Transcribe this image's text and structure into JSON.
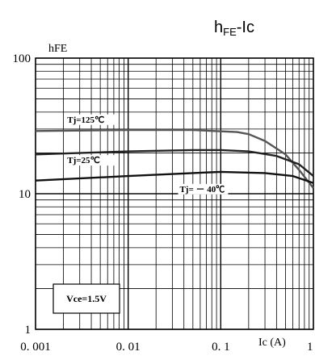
{
  "chart_data": {
    "type": "line",
    "title_main": "h",
    "title_sub": "FE",
    "title_tail": "-Ic",
    "ylabel": "hFE",
    "xlabel": "Ic (A)",
    "x_scale": "log",
    "y_scale": "log",
    "xlim": [
      0.001,
      1
    ],
    "ylim": [
      1,
      100
    ],
    "grid": true,
    "x_ticks": [
      {
        "value": 0.001,
        "label": "0. 001"
      },
      {
        "value": 0.01,
        "label": "0. 01"
      },
      {
        "value": 0.1,
        "label": "0. 1"
      }
    ],
    "x_end_label": "1",
    "y_ticks": [
      {
        "value": 1,
        "label": "1"
      },
      {
        "value": 10,
        "label": "10"
      },
      {
        "value": 100,
        "label": "100"
      }
    ],
    "condition": "Vce=1.5V",
    "series": [
      {
        "name": "Tj=125℃",
        "color": "#555555",
        "points": [
          [
            0.001,
            29
          ],
          [
            0.01,
            29.5
          ],
          [
            0.05,
            29.5
          ],
          [
            0.15,
            28.5
          ],
          [
            0.2,
            27.5
          ],
          [
            0.3,
            24.5
          ],
          [
            0.5,
            19.5
          ],
          [
            0.7,
            15
          ],
          [
            1.0,
            11
          ]
        ]
      },
      {
        "name": "Tj=25℃",
        "color": "#222222",
        "points": [
          [
            0.001,
            19.5
          ],
          [
            0.01,
            20.5
          ],
          [
            0.05,
            21
          ],
          [
            0.1,
            21
          ],
          [
            0.2,
            20.5
          ],
          [
            0.4,
            19
          ],
          [
            0.7,
            16.5
          ],
          [
            1.0,
            13.5
          ]
        ]
      },
      {
        "name": "Tj= － 40℃",
        "color": "#111111",
        "points": [
          [
            0.001,
            12.5
          ],
          [
            0.01,
            13.5
          ],
          [
            0.05,
            14.2
          ],
          [
            0.1,
            14.5
          ],
          [
            0.3,
            14.2
          ],
          [
            0.6,
            13.5
          ],
          [
            1.0,
            12
          ]
        ]
      }
    ]
  }
}
